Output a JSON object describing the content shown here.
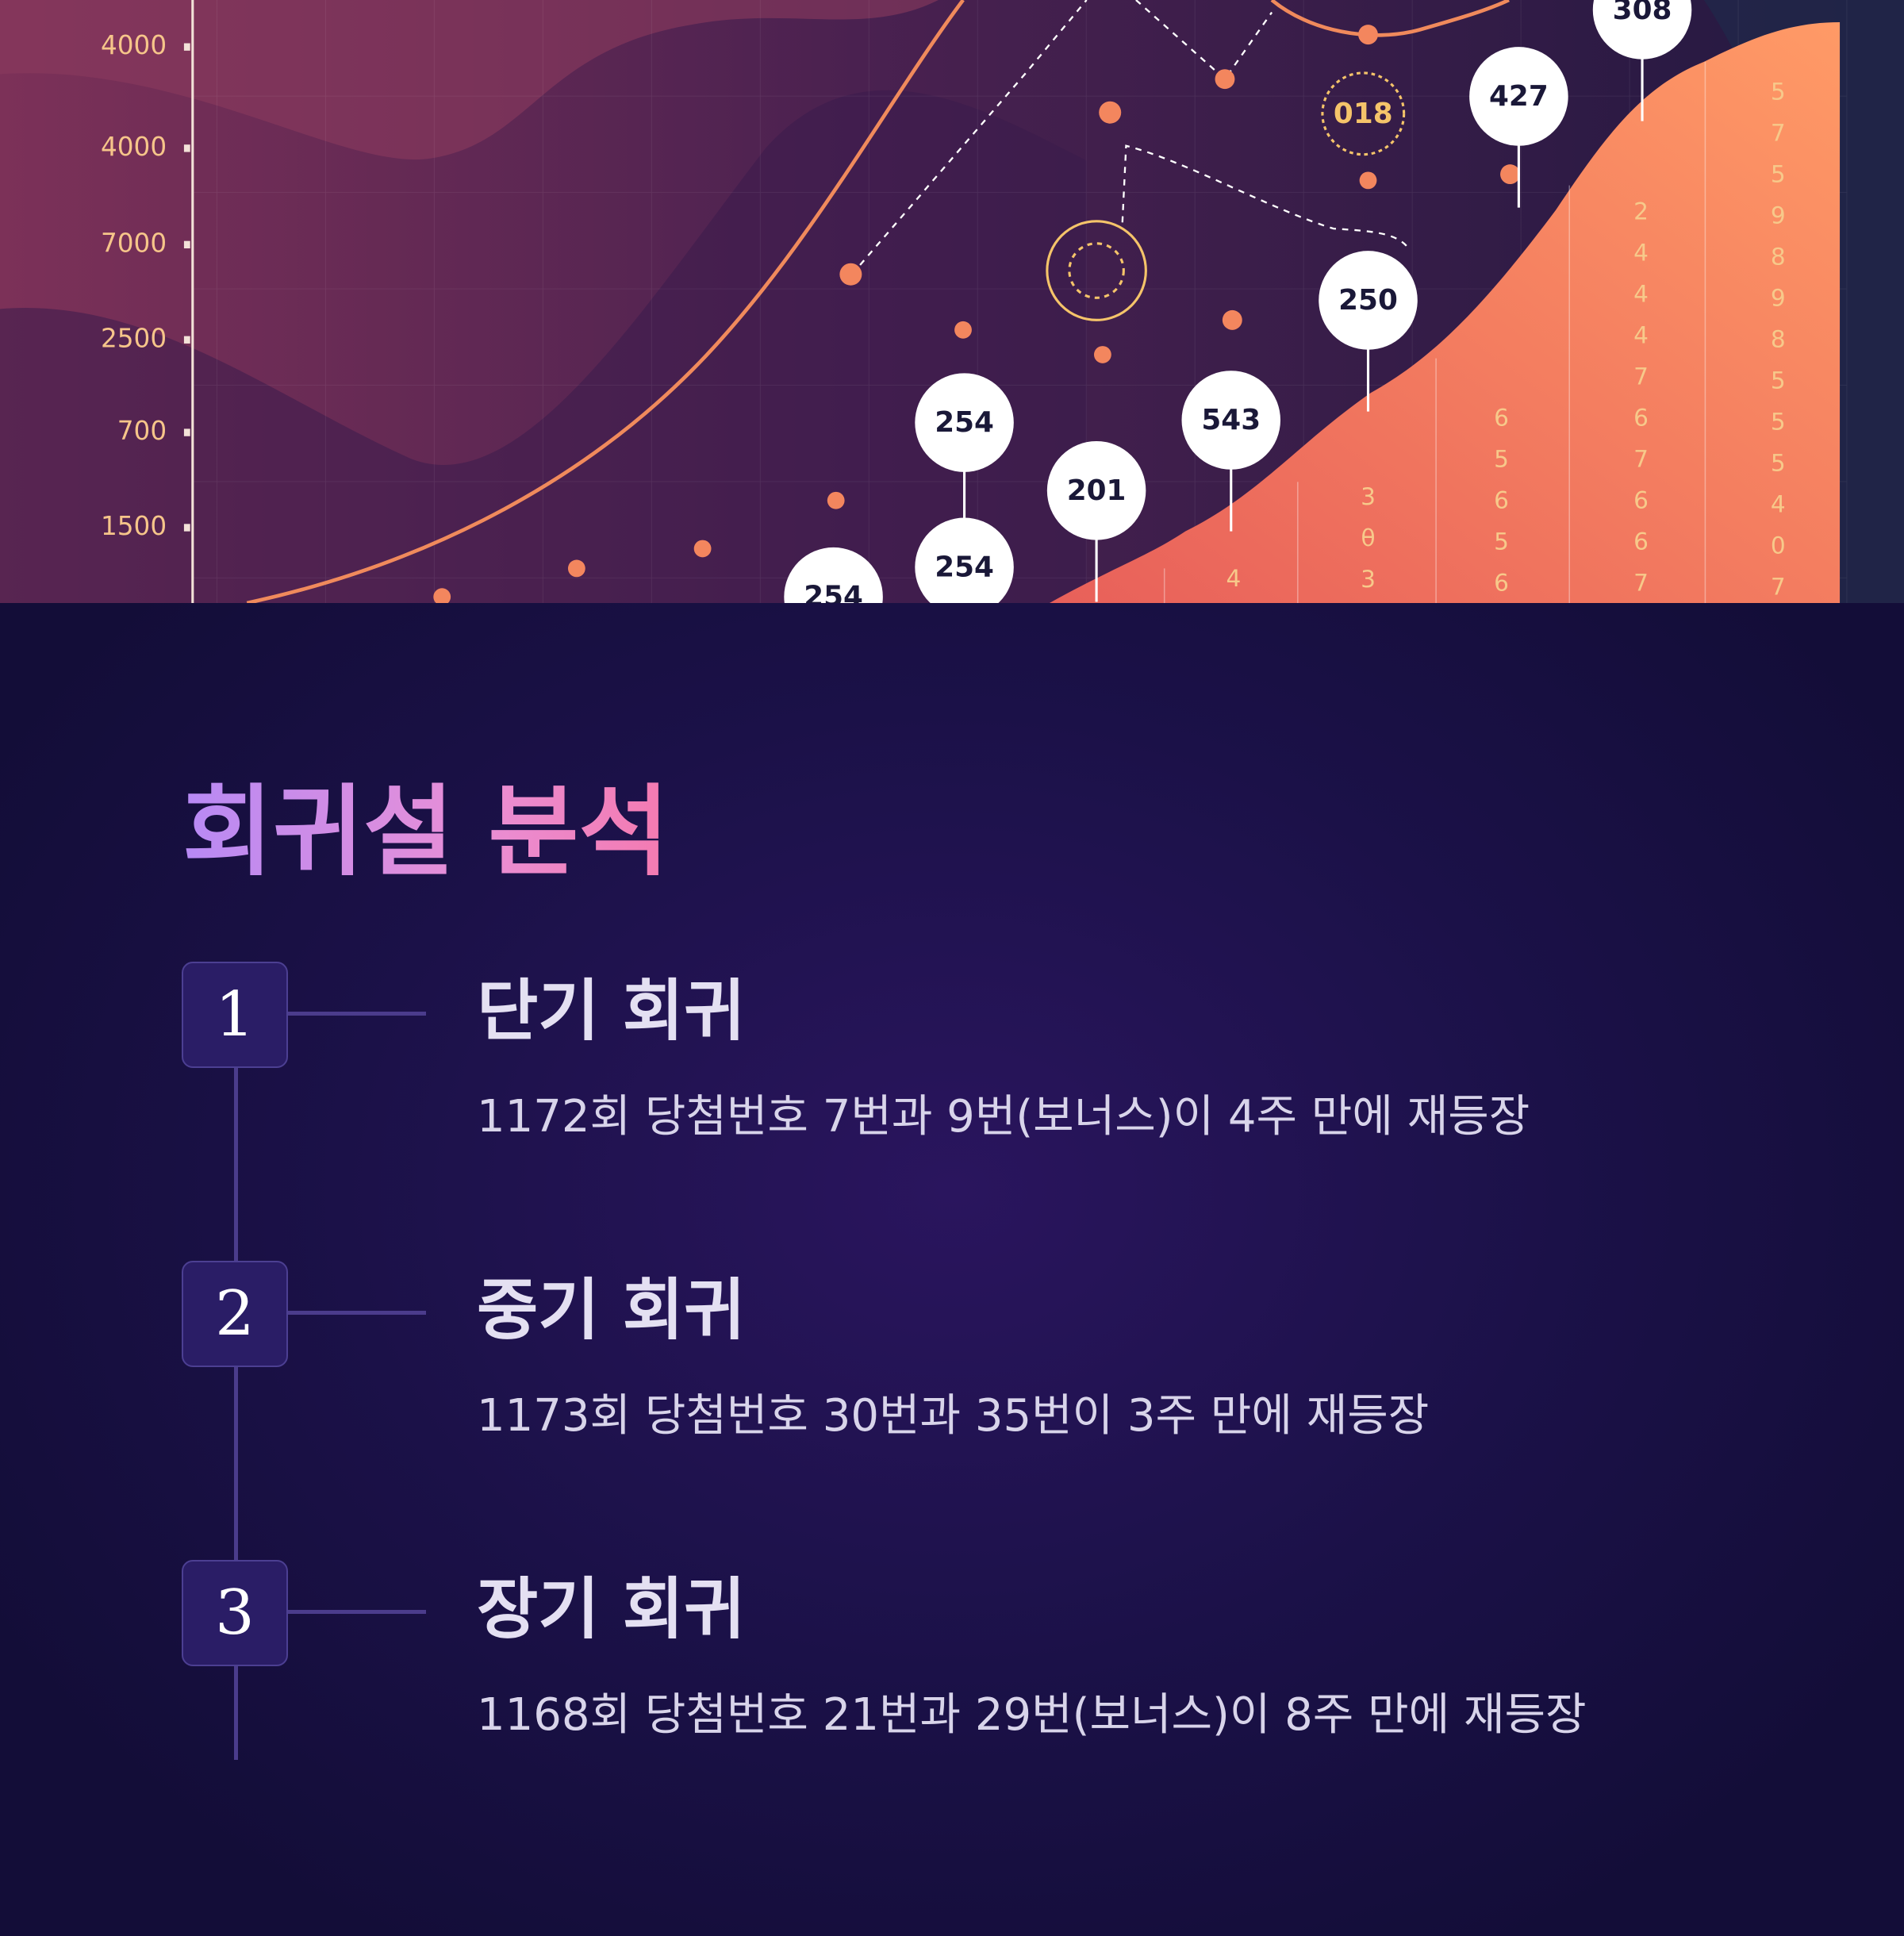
{
  "illustration": {
    "y_labels": [
      "4000",
      "4000",
      "7000",
      "2500",
      "700",
      "1500"
    ],
    "bubbles": [
      "308",
      "427",
      "250",
      "543",
      "254",
      "201",
      "254",
      "254"
    ],
    "badge": "018",
    "digit_columns": [
      [
        "4"
      ],
      [
        "3",
        "θ",
        "3"
      ],
      [
        "6",
        "5",
        "6",
        "5",
        "6"
      ],
      [
        "2",
        "4",
        "4",
        "4",
        "7",
        "6",
        "7",
        "6",
        "6",
        "7"
      ],
      [
        "5",
        "7",
        "5",
        "9",
        "8",
        "9",
        "8",
        "5",
        "5",
        "5",
        "4",
        "0",
        "7"
      ]
    ]
  },
  "section": {
    "title": "회귀설 분석",
    "items": [
      {
        "number": "1",
        "heading": "단기 회귀",
        "text": "1172회 당첨번호 7번과 9번(보너스)이 4주 만에 재등장"
      },
      {
        "number": "2",
        "heading": "중기 회귀",
        "text": "1173회 당첨번호 30번과 35번이 3주 만에 재등장"
      },
      {
        "number": "3",
        "heading": "장기 회귀",
        "text": "1168회 당첨번호 21번과 29번(보너스)이 8주 만에 재등장"
      }
    ]
  }
}
